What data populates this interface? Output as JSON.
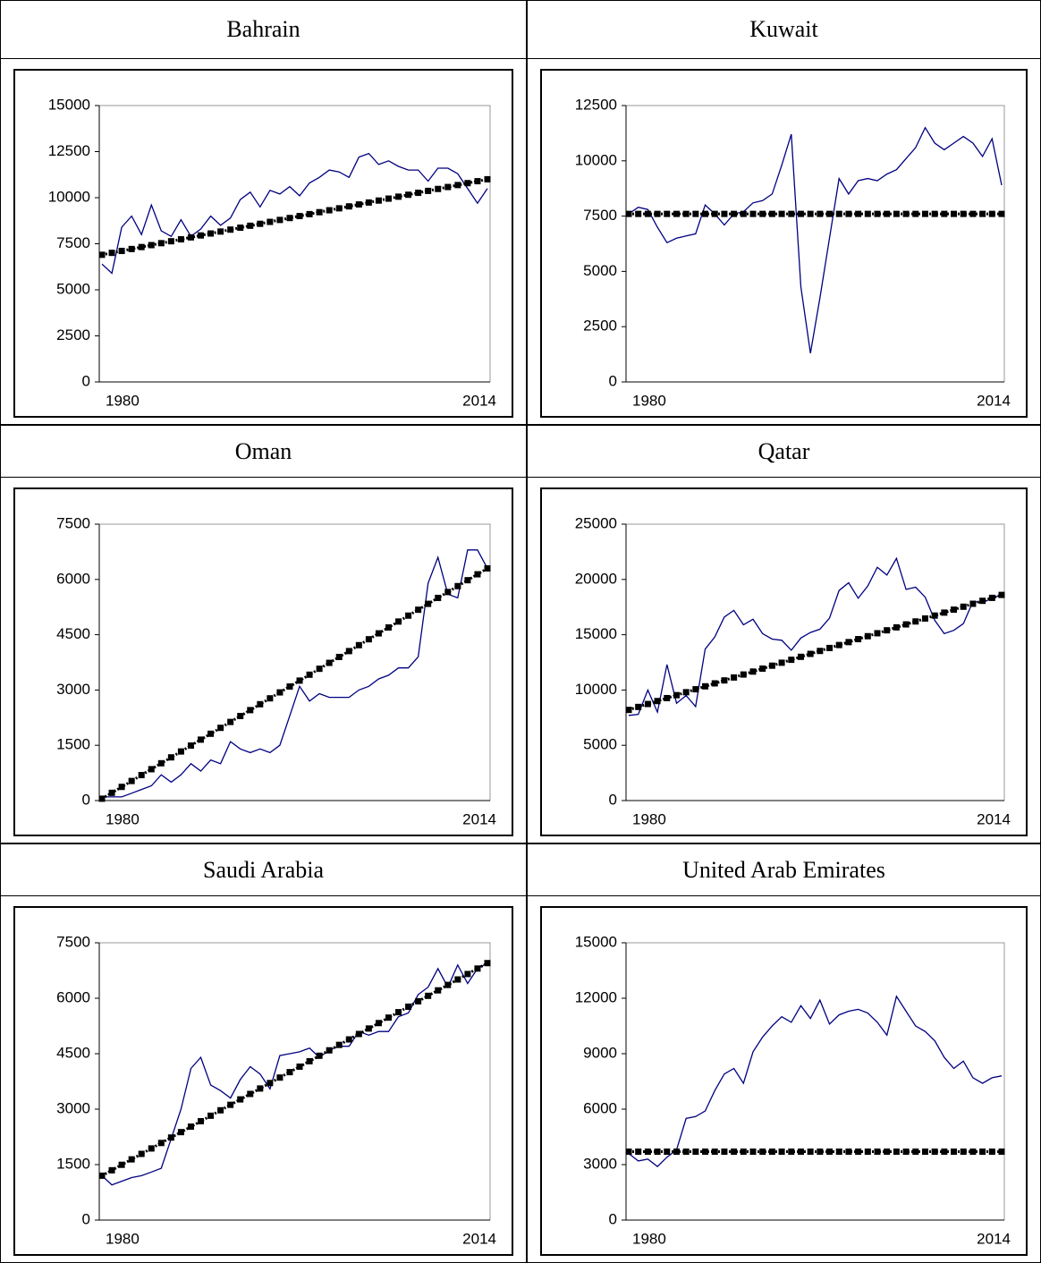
{
  "chart_data": [
    {
      "type": "line",
      "title": "Bahrain",
      "categories": [
        "1980",
        null,
        null,
        null,
        null,
        null,
        null,
        null,
        null,
        null,
        null,
        null,
        null,
        null,
        null,
        null,
        null,
        null,
        null,
        null,
        null,
        null,
        null,
        null,
        null,
        null,
        null,
        null,
        null,
        null,
        null,
        null,
        null,
        null,
        null,
        null,
        null,
        null,
        null,
        "2014"
      ],
      "ylim": [
        0,
        15000
      ],
      "yticks": [
        0,
        2500,
        5000,
        7500,
        10000,
        12500,
        15000
      ],
      "series": [
        {
          "color": "#000080",
          "values": [
            6400,
            5900,
            8400,
            9000,
            8000,
            9600,
            8200,
            7900,
            8800,
            7900,
            8300,
            9000,
            8500,
            8900,
            9900,
            10300,
            9500,
            10400,
            10200,
            10600,
            10100,
            10800,
            11100,
            11500,
            11400,
            11100,
            12200,
            12400,
            11800,
            12000,
            11700,
            11500,
            11500,
            10900,
            11600,
            11600,
            11300,
            10500,
            9700,
            10500
          ]
        },
        {
          "color": "#000000",
          "marker": "square",
          "values": [
            6900,
            7005,
            7110,
            7215,
            7321,
            7426,
            7531,
            7636,
            7741,
            7846,
            7951,
            8056,
            8162,
            8267,
            8372,
            8477,
            8582,
            8687,
            8792,
            8897,
            9003,
            9108,
            9213,
            9318,
            9423,
            9528,
            9633,
            9738,
            9844,
            9949,
            10054,
            10159,
            10264,
            10369,
            10474,
            10579,
            10685,
            10790,
            10895,
            11000
          ]
        }
      ]
    },
    {
      "type": "line",
      "title": "Kuwait",
      "categories": [
        "1980",
        null,
        null,
        null,
        null,
        null,
        null,
        null,
        null,
        null,
        null,
        null,
        null,
        null,
        null,
        null,
        null,
        null,
        null,
        null,
        null,
        null,
        null,
        null,
        null,
        null,
        null,
        null,
        null,
        null,
        null,
        null,
        null,
        null,
        null,
        null,
        null,
        null,
        null,
        "2014"
      ],
      "ylim": [
        0,
        12500
      ],
      "yticks": [
        0,
        2500,
        5000,
        7500,
        10000,
        12500
      ],
      "series": [
        {
          "color": "#000080",
          "values": [
            7600,
            7900,
            7800,
            7000,
            6300,
            6500,
            6600,
            6700,
            8000,
            7600,
            7100,
            7600,
            7700,
            8100,
            8200,
            8500,
            9800,
            11200,
            4300,
            1300,
            3800,
            6500,
            9200,
            8500,
            9100,
            9200,
            9100,
            9400,
            9600,
            10100,
            10600,
            11500,
            10800,
            10500,
            10800,
            11100,
            10800,
            10200,
            11000,
            8900
          ]
        },
        {
          "color": "#000000",
          "marker": "square",
          "values": [
            7600,
            7600,
            7600,
            7600,
            7600,
            7600,
            7600,
            7600,
            7600,
            7600,
            7600,
            7600,
            7600,
            7600,
            7600,
            7600,
            7600,
            7600,
            7600,
            7600,
            7600,
            7600,
            7600,
            7600,
            7600,
            7600,
            7600,
            7600,
            7600,
            7600,
            7600,
            7600,
            7600,
            7600,
            7600,
            7600,
            7600,
            7600,
            7600,
            7600
          ]
        }
      ]
    },
    {
      "type": "line",
      "title": "Oman",
      "categories": [
        "1980",
        null,
        null,
        null,
        null,
        null,
        null,
        null,
        null,
        null,
        null,
        null,
        null,
        null,
        null,
        null,
        null,
        null,
        null,
        null,
        null,
        null,
        null,
        null,
        null,
        null,
        null,
        null,
        null,
        null,
        null,
        null,
        null,
        null,
        null,
        null,
        null,
        null,
        null,
        "2014"
      ],
      "ylim": [
        0,
        7500
      ],
      "yticks": [
        0,
        1500,
        3000,
        4500,
        6000,
        7500
      ],
      "series": [
        {
          "color": "#000080",
          "values": [
            100,
            100,
            100,
            200,
            300,
            400,
            700,
            500,
            700,
            1000,
            800,
            1100,
            1000,
            1600,
            1400,
            1300,
            1400,
            1300,
            1500,
            2300,
            3100,
            2700,
            2900,
            2800,
            2800,
            2800,
            3000,
            3100,
            3300,
            3400,
            3600,
            3600,
            3900,
            5900,
            6600,
            5600,
            5500,
            6800,
            6800,
            6300
          ]
        },
        {
          "color": "#000000",
          "marker": "square",
          "values": [
            50,
            210,
            371,
            531,
            691,
            851,
            1012,
            1172,
            1332,
            1492,
            1653,
            1813,
            1973,
            2133,
            2294,
            2454,
            2614,
            2774,
            2935,
            3095,
            3255,
            3415,
            3576,
            3736,
            3896,
            4056,
            4217,
            4377,
            4537,
            4697,
            4858,
            5018,
            5178,
            5338,
            5499,
            5659,
            5819,
            5979,
            6140,
            6300
          ]
        }
      ]
    },
    {
      "type": "line",
      "title": "Qatar",
      "categories": [
        "1980",
        null,
        null,
        null,
        null,
        null,
        null,
        null,
        null,
        null,
        null,
        null,
        null,
        null,
        null,
        null,
        null,
        null,
        null,
        null,
        null,
        null,
        null,
        null,
        null,
        null,
        null,
        null,
        null,
        null,
        null,
        null,
        null,
        null,
        null,
        null,
        null,
        null,
        null,
        "2014"
      ],
      "ylim": [
        0,
        25000
      ],
      "yticks": [
        0,
        5000,
        10000,
        15000,
        20000,
        25000
      ],
      "series": [
        {
          "color": "#000080",
          "values": [
            7700,
            7800,
            10000,
            8000,
            12300,
            8800,
            9500,
            8500,
            13700,
            14800,
            16600,
            17200,
            15900,
            16400,
            15100,
            14600,
            14500,
            13600,
            14700,
            15200,
            15500,
            16500,
            19000,
            19700,
            18300,
            19400,
            21100,
            20400,
            21900,
            19100,
            19300,
            18400,
            16300,
            15100,
            15400,
            16000,
            18000,
            17900,
            18300,
            18600
          ]
        },
        {
          "color": "#000000",
          "marker": "square",
          "values": [
            8200,
            8467,
            8733,
            9000,
            9267,
            9533,
            9800,
            10067,
            10333,
            10600,
            10867,
            11133,
            11400,
            11667,
            11933,
            12200,
            12467,
            12733,
            13000,
            13267,
            13533,
            13800,
            14067,
            14333,
            14600,
            14867,
            15133,
            15400,
            15667,
            15933,
            16200,
            16467,
            16733,
            17000,
            17267,
            17533,
            17800,
            18067,
            18333,
            18600
          ]
        }
      ]
    },
    {
      "type": "line",
      "title": "Saudi Arabia",
      "categories": [
        "1980",
        null,
        null,
        null,
        null,
        null,
        null,
        null,
        null,
        null,
        null,
        null,
        null,
        null,
        null,
        null,
        null,
        null,
        null,
        null,
        null,
        null,
        null,
        null,
        null,
        null,
        null,
        null,
        null,
        null,
        null,
        null,
        null,
        null,
        null,
        null,
        null,
        null,
        null,
        "2014"
      ],
      "ylim": [
        0,
        7500
      ],
      "yticks": [
        0,
        1500,
        3000,
        4500,
        6000,
        7500
      ],
      "series": [
        {
          "color": "#000080",
          "values": [
            1200,
            950,
            1050,
            1150,
            1200,
            1300,
            1400,
            2200,
            3000,
            4100,
            4400,
            3650,
            3500,
            3300,
            3800,
            4150,
            3950,
            3550,
            4450,
            4500,
            4550,
            4650,
            4400,
            4600,
            4700,
            4700,
            5100,
            5000,
            5100,
            5100,
            5500,
            5600,
            6100,
            6300,
            6800,
            6300,
            6900,
            6400,
            6800,
            6950
          ]
        },
        {
          "color": "#000000",
          "marker": "square",
          "values": [
            1200,
            1347,
            1495,
            1642,
            1790,
            1937,
            2085,
            2232,
            2379,
            2527,
            2674,
            2822,
            2969,
            3117,
            3264,
            3412,
            3559,
            3706,
            3854,
            4001,
            4149,
            4296,
            4444,
            4591,
            4738,
            4886,
            5033,
            5181,
            5328,
            5476,
            5623,
            5771,
            5918,
            6065,
            6213,
            6360,
            6508,
            6655,
            6803,
            6950
          ]
        }
      ]
    },
    {
      "type": "line",
      "title": "United Arab Emirates",
      "categories": [
        "1980",
        null,
        null,
        null,
        null,
        null,
        null,
        null,
        null,
        null,
        null,
        null,
        null,
        null,
        null,
        null,
        null,
        null,
        null,
        null,
        null,
        null,
        null,
        null,
        null,
        null,
        null,
        null,
        null,
        null,
        null,
        null,
        null,
        null,
        null,
        null,
        null,
        null,
        null,
        "2014"
      ],
      "ylim": [
        0,
        15000
      ],
      "yticks": [
        0,
        3000,
        6000,
        9000,
        12000,
        15000
      ],
      "series": [
        {
          "color": "#000080",
          "values": [
            3600,
            3200,
            3300,
            2900,
            3400,
            3800,
            5500,
            5600,
            5900,
            7000,
            7900,
            8200,
            7400,
            9100,
            9900,
            10500,
            11000,
            10700,
            11600,
            10900,
            11900,
            10600,
            11100,
            11300,
            11400,
            11200,
            10700,
            10000,
            12100,
            11300,
            10500,
            10200,
            9700,
            8800,
            8200,
            8600,
            7700,
            7400,
            7700,
            7800
          ]
        },
        {
          "color": "#000000",
          "marker": "square",
          "values": [
            3700,
            3700,
            3700,
            3700,
            3700,
            3700,
            3700,
            3700,
            3700,
            3700,
            3700,
            3700,
            3700,
            3700,
            3700,
            3700,
            3700,
            3700,
            3700,
            3700,
            3700,
            3700,
            3700,
            3700,
            3700,
            3700,
            3700,
            3700,
            3700,
            3700,
            3700,
            3700,
            3700,
            3700,
            3700,
            3700,
            3700,
            3700,
            3700,
            3700
          ]
        }
      ]
    }
  ]
}
